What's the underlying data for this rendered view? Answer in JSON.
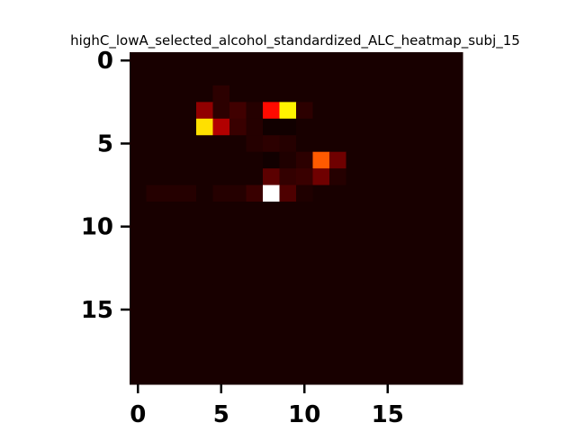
{
  "chart_data": {
    "type": "heatmap",
    "title": "highC_lowA_selected_alcohol_standardized_ALC_heatmap_subj_15",
    "xlabel": "",
    "ylabel": "",
    "rows": 20,
    "cols": 20,
    "xlim": [
      -0.5,
      19.5
    ],
    "ylim": [
      19.5,
      -0.5
    ],
    "xticks": [
      0,
      5,
      10,
      15
    ],
    "yticks": [
      0,
      5,
      10,
      15
    ],
    "colormap": "hot",
    "vmin": 0,
    "vmax": 1,
    "background_value": 0.02,
    "cells": [
      {
        "r": 2,
        "c": 5,
        "v": 0.05
      },
      {
        "r": 3,
        "c": 4,
        "v": 0.2
      },
      {
        "r": 3,
        "c": 5,
        "v": 0.05
      },
      {
        "r": 3,
        "c": 6,
        "v": 0.08
      },
      {
        "r": 3,
        "c": 7,
        "v": 0.04
      },
      {
        "r": 3,
        "c": 8,
        "v": 0.38
      },
      {
        "r": 3,
        "c": 9,
        "v": 0.73
      },
      {
        "r": 3,
        "c": 10,
        "v": 0.05
      },
      {
        "r": 4,
        "c": 4,
        "v": 0.7
      },
      {
        "r": 4,
        "c": 5,
        "v": 0.25
      },
      {
        "r": 4,
        "c": 6,
        "v": 0.07
      },
      {
        "r": 4,
        "c": 7,
        "v": 0.04
      },
      {
        "r": 4,
        "c": 8,
        "v": 0.01
      },
      {
        "r": 4,
        "c": 9,
        "v": 0.01
      },
      {
        "r": 5,
        "c": 7,
        "v": 0.04
      },
      {
        "r": 5,
        "c": 8,
        "v": 0.05
      },
      {
        "r": 5,
        "c": 9,
        "v": 0.04
      },
      {
        "r": 6,
        "c": 8,
        "v": 0.01
      },
      {
        "r": 6,
        "c": 9,
        "v": 0.03
      },
      {
        "r": 6,
        "c": 10,
        "v": 0.05
      },
      {
        "r": 6,
        "c": 11,
        "v": 0.5
      },
      {
        "r": 6,
        "c": 12,
        "v": 0.15
      },
      {
        "r": 7,
        "c": 8,
        "v": 0.12
      },
      {
        "r": 7,
        "c": 9,
        "v": 0.06
      },
      {
        "r": 7,
        "c": 10,
        "v": 0.07
      },
      {
        "r": 7,
        "c": 11,
        "v": 0.15
      },
      {
        "r": 7,
        "c": 12,
        "v": 0.04
      },
      {
        "r": 8,
        "c": 1,
        "v": 0.04
      },
      {
        "r": 8,
        "c": 2,
        "v": 0.04
      },
      {
        "r": 8,
        "c": 3,
        "v": 0.04
      },
      {
        "r": 8,
        "c": 5,
        "v": 0.04
      },
      {
        "r": 8,
        "c": 6,
        "v": 0.04
      },
      {
        "r": 8,
        "c": 7,
        "v": 0.07
      },
      {
        "r": 8,
        "c": 8,
        "v": 1.0
      },
      {
        "r": 8,
        "c": 9,
        "v": 0.1
      },
      {
        "r": 8,
        "c": 10,
        "v": 0.03
      }
    ]
  }
}
